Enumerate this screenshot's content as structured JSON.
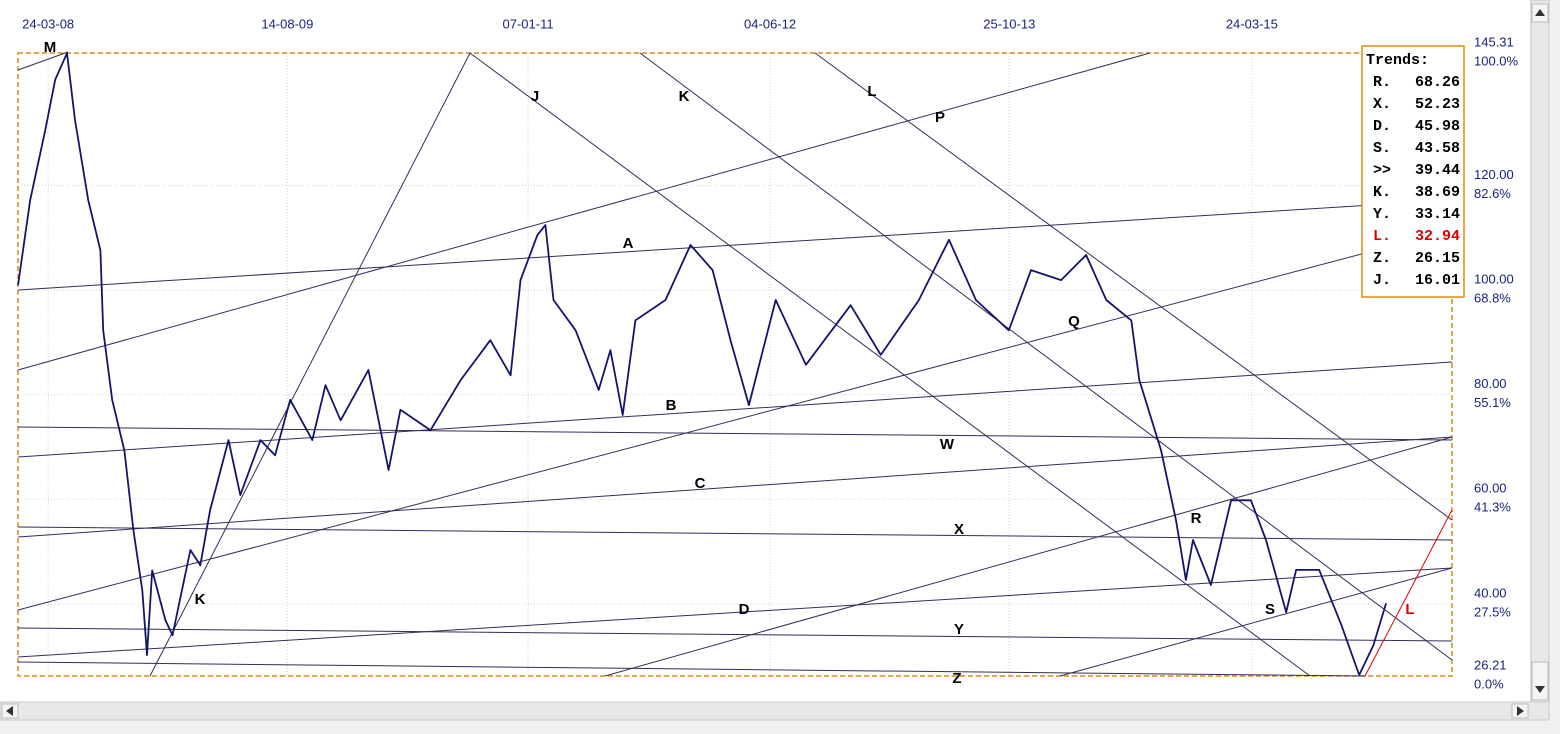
{
  "chart_data": {
    "type": "line",
    "x": [
      "2008-01-20",
      "2008-02-15",
      "2008-03-18",
      "2008-04-08",
      "2008-05-03",
      "2008-05-20",
      "2008-06-17",
      "2008-07-13",
      "2008-07-19",
      "2008-08-07",
      "2008-09-02",
      "2008-09-21",
      "2008-10-10",
      "2008-10-20",
      "2008-10-31",
      "2008-11-28",
      "2008-12-13",
      "2009-01-20",
      "2009-02-10",
      "2009-03-03",
      "2009-04-11",
      "2009-05-06",
      "2009-06-18",
      "2009-07-19",
      "2009-08-20",
      "2009-10-06",
      "2009-11-03",
      "2009-12-05",
      "2010-02-02",
      "2010-03-17",
      "2010-04-11",
      "2010-06-14",
      "2010-08-17",
      "2010-10-19",
      "2010-12-01",
      "2010-12-22",
      "2011-01-27",
      "2011-02-13",
      "2011-03-02",
      "2011-04-18",
      "2011-06-06",
      "2011-07-01",
      "2011-07-27",
      "2011-08-23",
      "2011-10-26",
      "2011-12-18",
      "2012-02-03",
      "2012-03-12",
      "2012-04-20",
      "2012-06-16",
      "2012-08-19",
      "2012-11-22",
      "2013-01-25",
      "2013-04-16",
      "2013-06-19",
      "2013-08-15",
      "2013-10-24",
      "2013-12-10",
      "2014-02-12",
      "2014-04-06",
      "2014-05-19",
      "2014-07-11",
      "2014-07-28",
      "2014-09-12",
      "2014-10-14",
      "2014-11-04",
      "2014-11-19",
      "2014-12-27",
      "2015-02-08",
      "2015-03-22",
      "2015-04-23",
      "2015-06-05",
      "2015-06-26",
      "2015-08-14",
      "2015-09-30",
      "2015-11-07",
      "2015-12-07",
      "2016-01-03"
    ],
    "series": [
      {
        "color": "#14146b",
        "values": [
          100.9,
          117.2,
          130.6,
          140.2,
          145.3,
          132.5,
          117.2,
          107.6,
          92.3,
          79.0,
          69.3,
          54.1,
          42.6,
          30.2,
          46.4,
          36.9,
          34.0,
          50.3,
          47.4,
          57.9,
          71.3,
          60.8,
          71.3,
          68.4,
          79.0,
          71.3,
          81.8,
          75.1,
          84.7,
          65.6,
          77.1,
          73.2,
          82.8,
          90.4,
          83.7,
          101.9,
          110.5,
          112.4,
          98.1,
          92.3,
          80.9,
          88.5,
          76.1,
          94.2,
          98.1,
          108.6,
          103.8,
          90.4,
          78.0,
          98.1,
          85.7,
          97.1,
          87.6,
          98.1,
          109.6,
          98.1,
          92.3,
          103.8,
          101.9,
          106.7,
          98.1,
          94.2,
          82.8,
          69.4,
          56.0,
          44.6,
          52.2,
          43.6,
          59.8,
          59.8,
          52.2,
          38.4,
          46.5,
          46.5,
          36.0,
          26.4,
          32.1,
          40.1
        ]
      }
    ],
    "xlim": [
      "2008-01-20",
      "2016-05-22"
    ],
    "xticks": [
      {
        "value": "2008-03-24",
        "label": "24-03-08"
      },
      {
        "value": "2009-08-14",
        "label": "14-08-09"
      },
      {
        "value": "2011-01-07",
        "label": "07-01-11"
      },
      {
        "value": "2012-06-04",
        "label": "04-06-12"
      },
      {
        "value": "2013-10-25",
        "label": "25-10-13"
      },
      {
        "value": "2015-03-24",
        "label": "24-03-15"
      }
    ],
    "ylim": [
      26.21,
      145.31
    ],
    "yticks": [
      {
        "value": 145.31,
        "label": "145.31"
      },
      {
        "value": 120,
        "label": "120.00"
      },
      {
        "value": 100,
        "label": "100.00"
      },
      {
        "value": 80,
        "label": "80.00"
      },
      {
        "value": 60,
        "label": "60.00"
      },
      {
        "value": 40,
        "label": "40.00"
      },
      {
        "value": 26.21,
        "label": "26.21"
      }
    ],
    "y_pct_labels": [
      "100.0%",
      "82.6%",
      "68.8%",
      "55.1%",
      "41.3%",
      "27.5%",
      "0.0%"
    ],
    "grid": true,
    "annotations": [
      {
        "text": "M",
        "color": "#000000"
      },
      {
        "text": "J",
        "color": "#000000"
      },
      {
        "text": "K",
        "color": "#000000"
      },
      {
        "text": "L",
        "color": "#000000"
      },
      {
        "text": "P",
        "color": "#000000"
      },
      {
        "text": "A",
        "color": "#000000"
      },
      {
        "text": "B",
        "color": "#000000"
      },
      {
        "text": "C",
        "color": "#000000"
      },
      {
        "text": "D",
        "color": "#000000"
      },
      {
        "text": "W",
        "color": "#000000"
      },
      {
        "text": "X",
        "color": "#000000"
      },
      {
        "text": "Y",
        "color": "#000000"
      },
      {
        "text": "Z",
        "color": "#000000"
      },
      {
        "text": "Q",
        "color": "#000000"
      },
      {
        "text": "R",
        "color": "#000000"
      },
      {
        "text": "S",
        "color": "#000000"
      },
      {
        "text": "K",
        "color": "#000000"
      },
      {
        "text": "L",
        "color": "#e00000"
      }
    ],
    "trends": {
      "title": "Trends:",
      "entries": [
        {
          "name": "R.",
          "value": 68.26,
          "color": "#000000"
        },
        {
          "name": "X.",
          "value": 52.23,
          "color": "#000000"
        },
        {
          "name": "D.",
          "value": 45.98,
          "color": "#000000"
        },
        {
          "name": "S.",
          "value": 43.58,
          "color": "#000000"
        },
        {
          "name": ">>",
          "value": 39.44,
          "color": "#000000"
        },
        {
          "name": "K.",
          "value": 38.69,
          "color": "#000000"
        },
        {
          "name": "Y.",
          "value": 33.14,
          "color": "#000000"
        },
        {
          "name": "L.",
          "value": 32.94,
          "color": "#e00000"
        },
        {
          "name": "Z.",
          "value": 26.15,
          "color": "#000000"
        },
        {
          "name": "J.",
          "value": 16.01,
          "color": "#000000"
        }
      ]
    }
  }
}
